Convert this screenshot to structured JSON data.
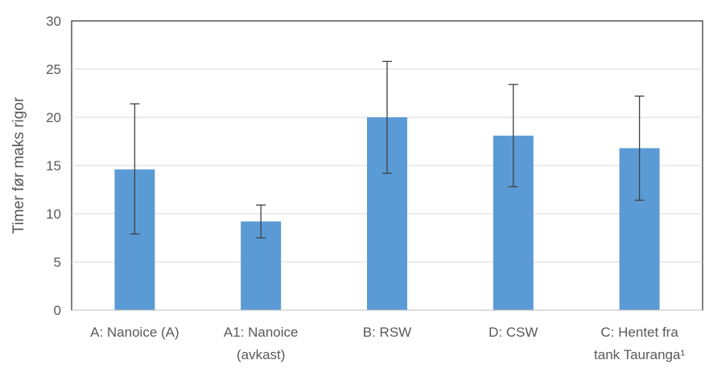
{
  "chart_data": {
    "type": "bar",
    "title": "",
    "xlabel": "",
    "ylabel": "Timer før maks rigor",
    "ylim": [
      0,
      30
    ],
    "yticks": [
      "0",
      "5",
      "10",
      "15",
      "20",
      "25",
      "30"
    ],
    "grid": true,
    "legend": "none",
    "categories": [
      [
        "A:   Nanoice (A)"
      ],
      [
        "A1: Nanoice",
        "(avkast)"
      ],
      [
        "B:    RSW"
      ],
      [
        "D:    CSW"
      ],
      [
        "C: Hentet fra",
        "tank Tauranga¹"
      ]
    ],
    "values": [
      14.6,
      9.2,
      20.0,
      18.1,
      16.8
    ],
    "error_low": [
      7.9,
      7.5,
      14.2,
      12.8,
      11.4
    ],
    "error_high": [
      21.4,
      10.9,
      25.8,
      23.4,
      22.2
    ],
    "colors": {
      "bar": "#5b9bd5",
      "grid": "#d9d9d9",
      "axis": "#bfbfbf",
      "frame": "#000000",
      "errorbar": "#404040"
    }
  }
}
